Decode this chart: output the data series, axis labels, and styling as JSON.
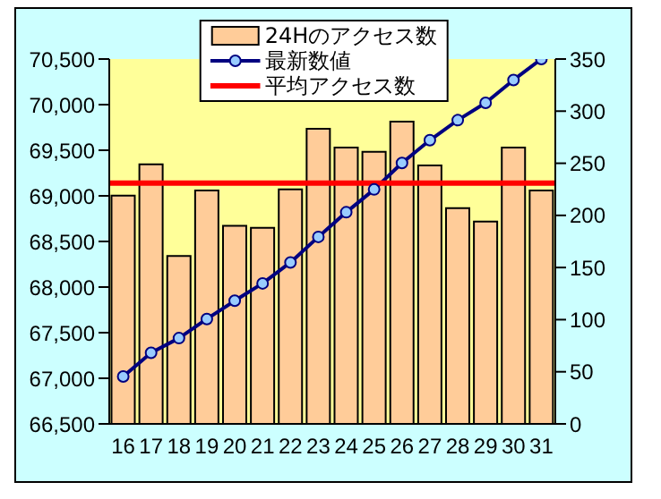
{
  "chart_data": {
    "type": "bar",
    "categories": [
      "16",
      "17",
      "18",
      "19",
      "20",
      "21",
      "22",
      "23",
      "24",
      "25",
      "26",
      "27",
      "28",
      "29",
      "30",
      "31"
    ],
    "series": [
      {
        "name": "24Hのアクセス数",
        "axis": "y2",
        "color": "#ffcc99",
        "values": [
          219,
          249,
          161,
          224,
          190,
          188,
          225,
          283,
          265,
          261,
          290,
          248,
          207,
          194,
          265,
          224
        ]
      },
      {
        "name": "最新数値",
        "type": "line",
        "color": "#000080",
        "values": [
          67020,
          67280,
          67440,
          67650,
          67850,
          68040,
          68270,
          68550,
          68820,
          69070,
          69360,
          69610,
          69830,
          70020,
          70270,
          70500
        ]
      }
    ],
    "ylim": [
      66500,
      70500
    ],
    "yticks": [
      {
        "value": 66500,
        "label": "66,500"
      },
      {
        "value": 67000,
        "label": "67,000"
      },
      {
        "value": 67500,
        "label": "67,500"
      },
      {
        "value": 68000,
        "label": "68,000"
      },
      {
        "value": 68500,
        "label": "68,500"
      },
      {
        "value": 69000,
        "label": "69,000"
      },
      {
        "value": 69500,
        "label": "69,500"
      },
      {
        "value": 70000,
        "label": "70,000"
      },
      {
        "value": 70500,
        "label": "70,500"
      }
    ],
    "y2lim": [
      0,
      350
    ],
    "y2ticks": [
      0,
      50,
      100,
      150,
      200,
      250,
      300,
      350
    ],
    "ref_lines": [
      {
        "axis": "y2",
        "value": 231,
        "label": "平均アクセス数",
        "color": "#ff0000"
      }
    ],
    "bands": [
      {
        "axis": "y",
        "from": 66500,
        "to": 70500,
        "color": "#ffff99"
      }
    ],
    "marker": "circle",
    "grid": false,
    "legend": "top"
  }
}
